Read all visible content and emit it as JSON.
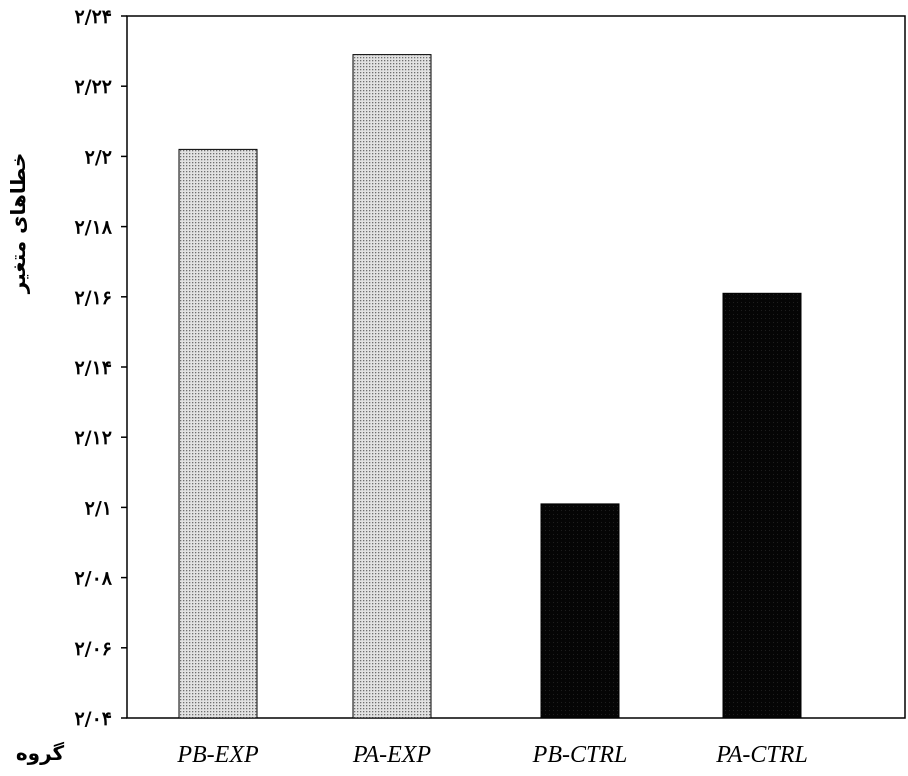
{
  "chart_data": {
    "type": "bar",
    "title": "",
    "xlabel": "گروه",
    "ylabel": "خطاهای متغیر",
    "categories": [
      "PB-EXP",
      "PA-EXP",
      "PB-CTRL",
      "PA-CTRL"
    ],
    "values": [
      2.202,
      2.229,
      2.101,
      2.161
    ],
    "ylim": [
      2.04,
      2.24
    ],
    "yticks": [
      2.04,
      2.06,
      2.08,
      2.1,
      2.12,
      2.14,
      2.16,
      2.18,
      2.2,
      2.22,
      2.24
    ],
    "ytick_labels": [
      "۲/۰۴",
      "۲/۰۶",
      "۲/۰۸",
      "۲/۱",
      "۲/۱۲",
      "۲/۱۴",
      "۲/۱۶",
      "۲/۱۸",
      "۲/۲",
      "۲/۲۲",
      "۲/۲۴"
    ],
    "bar_styles": [
      "dotted-light",
      "dotted-light",
      "solid-dark",
      "solid-dark"
    ],
    "colors": {
      "light_bar": "#c4c4c4",
      "dark_bar": "#000000",
      "axis": "#000000"
    },
    "grid": false,
    "legend": "none"
  }
}
